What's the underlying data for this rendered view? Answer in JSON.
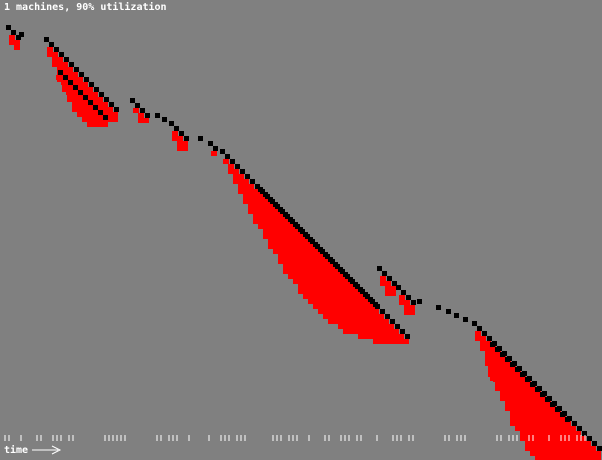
{
  "header": {
    "title": "1 machines, 90% utilization"
  },
  "footer": {
    "time_label": "time"
  },
  "colors": {
    "background": "#808080",
    "job_marker": "#000000",
    "queue_fill": "#ff0000",
    "tick": "#ffffff",
    "text": "#ffffff"
  },
  "icons": {
    "time_arrow": "right-arrow-icon"
  }
}
